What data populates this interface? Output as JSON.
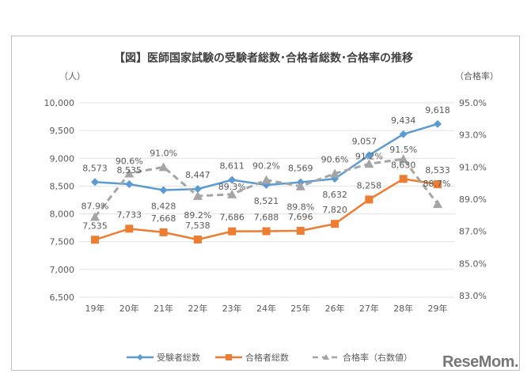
{
  "chart_data": {
    "type": "line",
    "title": "【図】医師国家試験の受験者総数･合格者総数･合格率の推移",
    "ylabel_left": "（人）",
    "ylabel_right": "（合格率）",
    "categories": [
      "19年",
      "20年",
      "21年",
      "22年",
      "23年",
      "24年",
      "25年",
      "26年",
      "27年",
      "28年",
      "29年"
    ],
    "y_left": {
      "min": 6500,
      "max": 10000,
      "ticks": [
        "6,500",
        "7,000",
        "7,500",
        "8,000",
        "8,500",
        "9,000",
        "9,500",
        "10,000"
      ]
    },
    "y_right": {
      "min": 83.0,
      "max": 95.0,
      "ticks": [
        "83.0%",
        "85.0%",
        "87.0%",
        "89.0%",
        "91.0%",
        "93.0%",
        "95.0%"
      ]
    },
    "grid": true,
    "legend_position": "bottom",
    "series": [
      {
        "name": "受験者総数",
        "axis": "left",
        "color": "#5b9bd5",
        "marker": "diamond",
        "values": [
          8573,
          8535,
          8428,
          8447,
          8611,
          8521,
          8569,
          8632,
          9057,
          9434,
          9618
        ],
        "labels": [
          "8,573",
          "8,535",
          "8,428",
          "8,447",
          "8,611",
          "8,521",
          "8,569",
          "8,632",
          "9,057",
          "9,434",
          "9,618"
        ]
      },
      {
        "name": "合格者総数",
        "axis": "left",
        "color": "#ed7d31",
        "marker": "square",
        "values": [
          7535,
          7733,
          7668,
          7538,
          7686,
          7688,
          7696,
          7820,
          8258,
          8630,
          8533
        ],
        "labels": [
          "7,535",
          "7,733",
          "7,668",
          "7,538",
          "7,686",
          "7,688",
          "7,696",
          "7,820",
          "8,258",
          "8,630",
          "8,533"
        ]
      },
      {
        "name": "合格率（右数値）",
        "axis": "right",
        "color": "#a5a5a5",
        "marker": "triangle",
        "dashed": true,
        "values": [
          87.9,
          90.6,
          91.0,
          89.2,
          89.3,
          90.2,
          89.8,
          90.6,
          91.2,
          91.5,
          88.7
        ],
        "labels": [
          "87.9%",
          "90.6%",
          "91.0%",
          "89.2%",
          "89.3%",
          "90.2%",
          "89.8%",
          "90.6%",
          "91.2%",
          "91.5%",
          "88.7%"
        ]
      }
    ]
  },
  "logo": "ReseMom"
}
